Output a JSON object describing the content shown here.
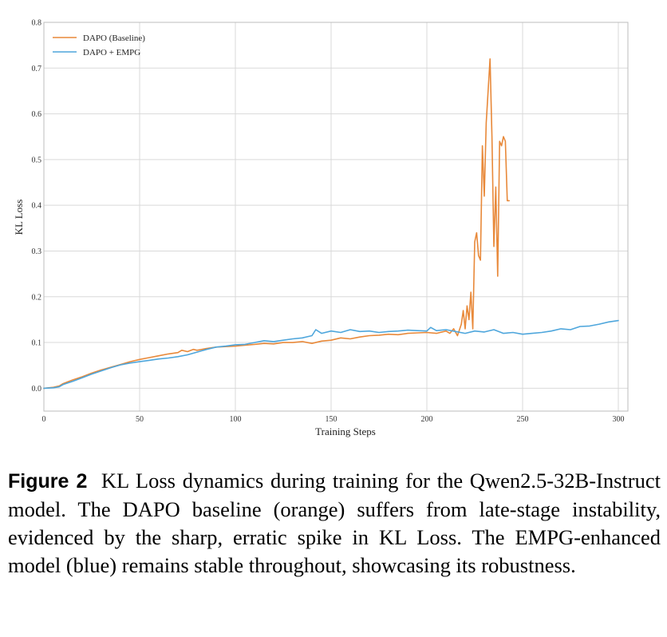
{
  "chart_data": {
    "type": "line",
    "title": "",
    "xlabel": "Training Steps",
    "ylabel": "KL Loss",
    "xlim": [
      0,
      305
    ],
    "ylim": [
      -0.05,
      0.8
    ],
    "xticks": [
      0,
      50,
      100,
      150,
      200,
      250,
      300
    ],
    "yticks": [
      0.0,
      0.1,
      0.2,
      0.3,
      0.4,
      0.5,
      0.6,
      0.7,
      0.8
    ],
    "grid": true,
    "legend_position": "top-left",
    "series": [
      {
        "name": "DAPO (Baseline)",
        "color": "#e8893a",
        "x": [
          0,
          5,
          8,
          10,
          15,
          20,
          25,
          30,
          35,
          40,
          45,
          50,
          55,
          60,
          65,
          70,
          72,
          75,
          78,
          80,
          85,
          90,
          95,
          100,
          105,
          110,
          115,
          120,
          125,
          130,
          135,
          140,
          145,
          150,
          155,
          160,
          165,
          170,
          175,
          180,
          185,
          190,
          195,
          200,
          205,
          210,
          212,
          214,
          216,
          218,
          219,
          220,
          221,
          222,
          223,
          224,
          225,
          226,
          227,
          228,
          229,
          230,
          231,
          232,
          233,
          234,
          235,
          236,
          237,
          238,
          239,
          240,
          241,
          242,
          243
        ],
        "y": [
          0.0,
          0.002,
          0.005,
          0.01,
          0.018,
          0.025,
          0.033,
          0.04,
          0.046,
          0.052,
          0.058,
          0.063,
          0.067,
          0.071,
          0.075,
          0.078,
          0.083,
          0.08,
          0.085,
          0.083,
          0.087,
          0.09,
          0.091,
          0.092,
          0.094,
          0.096,
          0.098,
          0.097,
          0.1,
          0.1,
          0.102,
          0.098,
          0.103,
          0.105,
          0.11,
          0.108,
          0.112,
          0.115,
          0.116,
          0.118,
          0.117,
          0.12,
          0.121,
          0.122,
          0.12,
          0.125,
          0.12,
          0.13,
          0.115,
          0.14,
          0.17,
          0.13,
          0.18,
          0.15,
          0.21,
          0.13,
          0.32,
          0.34,
          0.29,
          0.28,
          0.53,
          0.42,
          0.58,
          0.65,
          0.72,
          0.55,
          0.31,
          0.44,
          0.245,
          0.54,
          0.53,
          0.55,
          0.54,
          0.41,
          0.41
        ]
      },
      {
        "name": "DAPO + EMPG",
        "color": "#4ea6dc",
        "x": [
          0,
          5,
          8,
          10,
          15,
          20,
          25,
          30,
          35,
          40,
          45,
          50,
          55,
          60,
          65,
          70,
          75,
          80,
          85,
          90,
          95,
          100,
          105,
          110,
          115,
          120,
          125,
          130,
          135,
          140,
          142,
          145,
          150,
          155,
          160,
          165,
          170,
          175,
          180,
          185,
          190,
          195,
          200,
          202,
          205,
          210,
          215,
          220,
          225,
          230,
          235,
          240,
          245,
          250,
          255,
          260,
          265,
          270,
          275,
          280,
          285,
          290,
          295,
          300
        ],
        "y": [
          0.0,
          0.001,
          0.003,
          0.008,
          0.015,
          0.023,
          0.031,
          0.038,
          0.045,
          0.051,
          0.055,
          0.058,
          0.061,
          0.064,
          0.066,
          0.069,
          0.073,
          0.079,
          0.085,
          0.09,
          0.092,
          0.095,
          0.096,
          0.1,
          0.104,
          0.102,
          0.105,
          0.108,
          0.11,
          0.115,
          0.128,
          0.12,
          0.125,
          0.122,
          0.128,
          0.124,
          0.125,
          0.122,
          0.124,
          0.125,
          0.127,
          0.126,
          0.125,
          0.133,
          0.126,
          0.128,
          0.124,
          0.12,
          0.125,
          0.123,
          0.128,
          0.12,
          0.122,
          0.118,
          0.12,
          0.122,
          0.125,
          0.13,
          0.128,
          0.135,
          0.136,
          0.14,
          0.145,
          0.148
        ]
      }
    ]
  },
  "caption": {
    "label": "Figure 2",
    "text": "KL Loss dynamics during training for the Qwen2.5-32B-Instruct model. The DAPO baseline (orange) suffers from late-stage instability, evidenced by the sharp, erratic spike in KL Loss. The EMPG-enhanced model (blue) remains stable throughout, showcasing its robustness."
  }
}
